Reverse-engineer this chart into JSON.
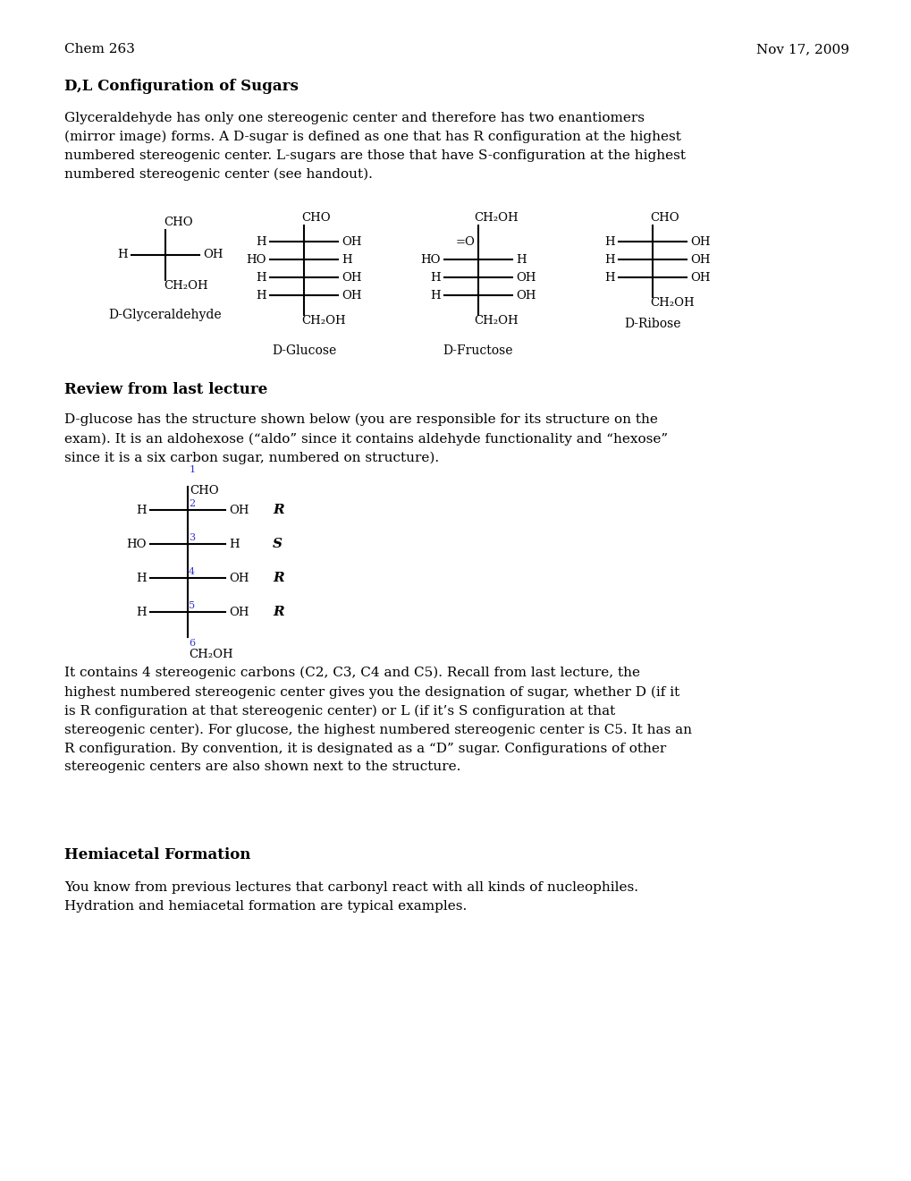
{
  "header_left": "Chem 263",
  "header_right": "Nov 17, 2009",
  "title": "D,L Configuration of Sugars",
  "para1": "Glyceraldehyde has only one stereogenic center and therefore has two enantiomers\n(mirror image) forms. A D-sugar is defined as one that has R configuration at the highest\nnumbered stereogenic center. L-sugars are those that have S-configuration at the highest\nnumbered stereogenic center (see handout).",
  "section2_title": "Review from last lecture",
  "para2": "D-glucose has the structure shown below (you are responsible for its structure on the\nexam). It is an aldohexose (“aldo” since it contains aldehyde functionality and “hexose”\nsince it is a six carbon sugar, numbered on structure).",
  "para3": "It contains 4 stereogenic carbons (C2, C3, C4 and C5). Recall from last lecture, the\nhighest numbered stereogenic center gives you the designation of sugar, whether D (if it\nis R configuration at that stereogenic center) or L (if it’s S configuration at that\nstereogenic center). For glucose, the highest numbered stereogenic center is C5. It has an\nR configuration. By convention, it is designated as a “D” sugar. Configurations of other\nstereogenic centers are also shown next to the structure.",
  "section3_title": "Hemiacetal Formation",
  "para4": "You know from previous lectures that carbonyl react with all kinds of nucleophiles.\nHydration and hemiacetal formation are typical examples.",
  "bg_color": "#ffffff",
  "text_color": "#000000",
  "blue_color": "#3333cc"
}
